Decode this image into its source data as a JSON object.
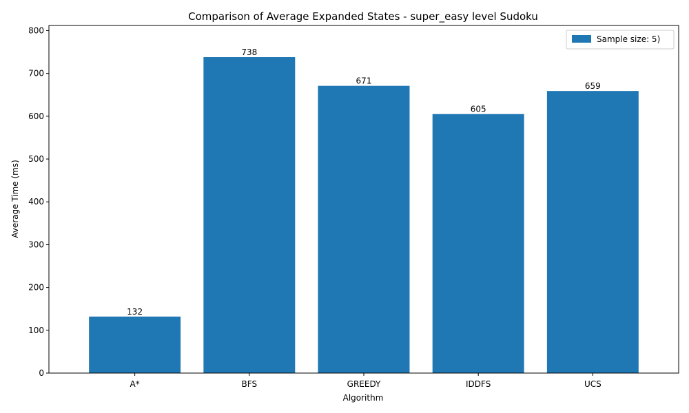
{
  "chart_data": {
    "type": "bar",
    "title": "Comparison of Average Expanded States - super_easy level Sudoku",
    "xlabel": "Algorithm",
    "ylabel": "Average Time (ms)",
    "categories": [
      "A*",
      "BFS",
      "GREEDY",
      "IDDFS",
      "UCS"
    ],
    "series": [
      {
        "name": "Sample size: 5)",
        "values": [
          132,
          738,
          671,
          605,
          659
        ],
        "color": "#1f77b4"
      }
    ],
    "data_labels": [
      "132",
      "738",
      "671",
      "605",
      "659"
    ],
    "ylim": [
      0,
      812
    ],
    "yticks": [
      0,
      100,
      200,
      300,
      400,
      500,
      600,
      700,
      800
    ],
    "ytick_labels": [
      "0",
      "100",
      "200",
      "300",
      "400",
      "500",
      "600",
      "700",
      "800"
    ],
    "grid": false,
    "legend_position": "top-right"
  }
}
